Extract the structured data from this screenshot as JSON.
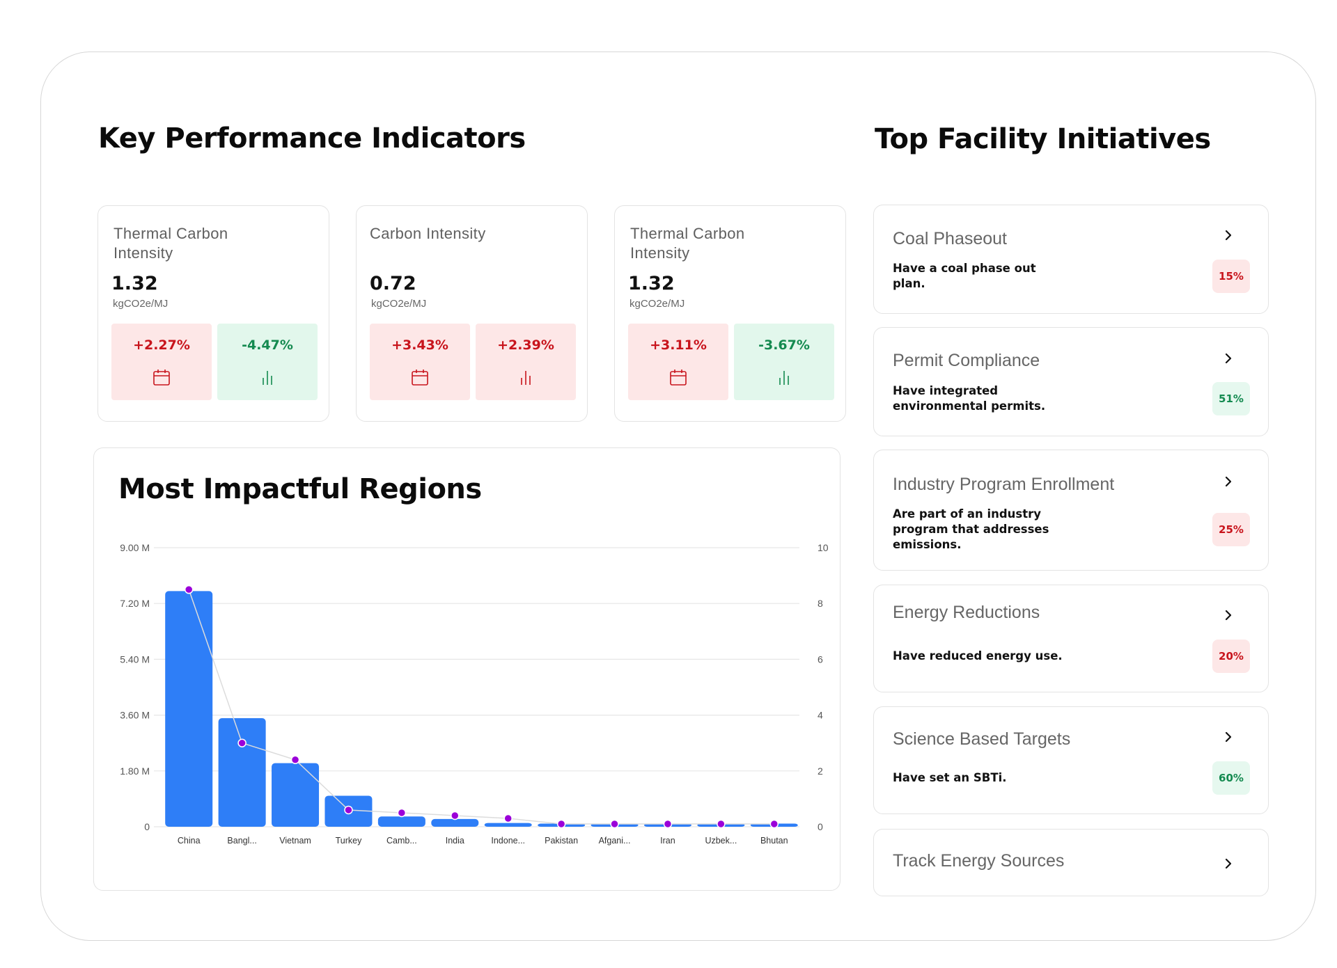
{
  "kpi": {
    "heading": "Key Performance Indicators",
    "cards": [
      {
        "title": "Thermal Carbon Intensity",
        "value": "1.32",
        "unit": "kgCO2e/MJ",
        "chips": [
          {
            "value": "+2.27%",
            "tone": "red",
            "icon": "calendar-icon"
          },
          {
            "value": "-4.47%",
            "tone": "green",
            "icon": "bar-chart-icon"
          }
        ]
      },
      {
        "title": "Carbon Intensity",
        "value": "0.72",
        "unit": "kgCO2e/MJ",
        "chips": [
          {
            "value": "+3.43%",
            "tone": "red",
            "icon": "calendar-icon"
          },
          {
            "value": "+2.39%",
            "tone": "red",
            "icon": "bar-chart-icon"
          }
        ]
      },
      {
        "title": "Thermal Carbon Intensity",
        "value": "1.32",
        "unit": "kgCO2e/MJ",
        "chips": [
          {
            "value": "+3.11%",
            "tone": "red",
            "icon": "calendar-icon"
          },
          {
            "value": "-3.67%",
            "tone": "green",
            "icon": "bar-chart-icon"
          }
        ]
      }
    ]
  },
  "regions": {
    "heading": "Most Impactful Regions"
  },
  "chart_data": {
    "type": "bar",
    "title": "Most Impactful Regions",
    "categories": [
      "China",
      "Bangl...",
      "Vietnam",
      "Turkey",
      "Camb...",
      "India",
      "Indone...",
      "Pakistan",
      "Afgani...",
      "Iran",
      "Uzbek...",
      "Bhutan"
    ],
    "series": [
      {
        "axis": "left",
        "kind": "bar",
        "color": "#2e7ef7",
        "values": [
          7.6,
          3.5,
          2.05,
          1.0,
          0.33,
          0.25,
          0.12,
          0.1,
          0.1,
          0.1,
          0.1,
          0.1
        ]
      },
      {
        "axis": "right",
        "kind": "line",
        "color": "#9b00d9",
        "values": [
          8.5,
          3.0,
          2.4,
          0.6,
          0.5,
          0.4,
          0.3,
          0.1,
          0.1,
          0.1,
          0.1,
          0.1
        ]
      }
    ],
    "yaxis_left": {
      "ticks": [
        "0",
        "1.80 M",
        "3.60 M",
        "5.40 M",
        "7.20 M",
        "9.00 M"
      ],
      "ylim": [
        0,
        9
      ]
    },
    "yaxis_right": {
      "ticks": [
        "0",
        "2",
        "4",
        "6",
        "8",
        "10"
      ],
      "ylim": [
        0,
        10
      ]
    },
    "grid": true
  },
  "initiatives": {
    "heading": "Top Facility Initiatives",
    "items": [
      {
        "title": "Coal Phaseout",
        "desc": "Have a coal phase out plan.",
        "pct": "15%",
        "tone": "red"
      },
      {
        "title": "Permit Compliance",
        "desc": "Have integrated environmental permits.",
        "pct": "51%",
        "tone": "green"
      },
      {
        "title": "Industry Program Enrollment",
        "desc": "Are part of an industry program that addresses emissions.",
        "pct": "25%",
        "tone": "red"
      },
      {
        "title": "Energy Reductions",
        "desc": "Have reduced energy use.",
        "pct": "20%",
        "tone": "red"
      },
      {
        "title": "Science Based Targets",
        "desc": "Have set an SBTi.",
        "pct": "60%",
        "tone": "green"
      },
      {
        "title": "Track Energy Sources",
        "desc": "",
        "pct": "",
        "tone": ""
      }
    ]
  }
}
